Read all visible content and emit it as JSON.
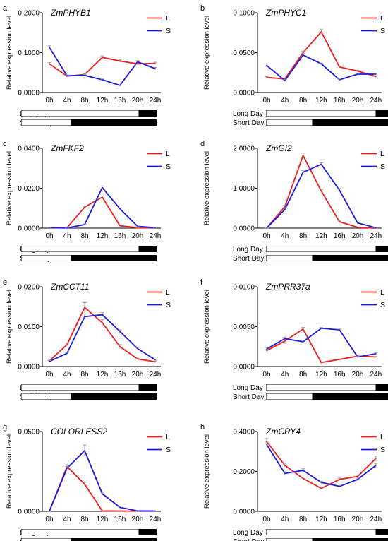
{
  "x_categories": [
    "0h",
    "4h",
    "8h",
    "12h",
    "16h",
    "20h",
    "24h"
  ],
  "day_labels": {
    "long": "Long Day",
    "short": "Short Day"
  },
  "colors": {
    "L": "#ee1c1c",
    "S": "#1a1ae0",
    "error": "#999999"
  },
  "chart_data": [
    {
      "type": "line",
      "letter": "a",
      "title": "ZmPHYB1",
      "ylabel": "Relative expression level",
      "yticks": [
        "0.0000",
        "0.1000",
        "0.2000"
      ],
      "ylim": [
        0,
        0.2
      ],
      "legend_position": "top-right",
      "series": [
        {
          "name": "L",
          "values": [
            0.072,
            0.041,
            0.045,
            0.088,
            0.079,
            0.072,
            0.073
          ],
          "errors": [
            0.003,
            0.002,
            0.002,
            0.004,
            0.003,
            0.003,
            0.003
          ]
        },
        {
          "name": "S",
          "values": [
            0.113,
            0.042,
            0.043,
            0.032,
            0.018,
            0.077,
            0.06
          ],
          "errors": [
            0.004,
            0.002,
            0.002,
            0.002,
            0.001,
            0.003,
            0.003
          ]
        }
      ]
    },
    {
      "type": "line",
      "letter": "b",
      "title": "ZmPHYC1",
      "ylabel": "Relative expression level",
      "yticks": [
        "0.0000",
        "0.0500",
        "0.1000"
      ],
      "ylim": [
        0,
        0.1
      ],
      "legend_position": "top-right",
      "series": [
        {
          "name": "L",
          "values": [
            0.019,
            0.017,
            0.05,
            0.076,
            0.032,
            0.027,
            0.02
          ],
          "errors": [
            0.001,
            0.001,
            0.002,
            0.003,
            0.001,
            0.001,
            0.001
          ]
        },
        {
          "name": "S",
          "values": [
            0.034,
            0.015,
            0.047,
            0.036,
            0.016,
            0.023,
            0.023
          ],
          "errors": [
            0.002,
            0.001,
            0.002,
            0.001,
            0.001,
            0.001,
            0.001
          ]
        }
      ]
    },
    {
      "type": "line",
      "letter": "c",
      "title": "ZmFKF2",
      "ylabel": "Relative expression level",
      "yticks": [
        "0.0000",
        "0.0200",
        "0.0400"
      ],
      "ylim": [
        0,
        0.04
      ],
      "legend_position": "top-right",
      "series": [
        {
          "name": "L",
          "values": [
            0.0003,
            0.0002,
            0.0105,
            0.0155,
            0.0012,
            0.0002,
            0.0001
          ],
          "errors": [
            5e-05,
            5e-05,
            0.0004,
            0.0006,
            0.0002,
            5e-05,
            5e-05
          ]
        },
        {
          "name": "S",
          "values": [
            0.0002,
            0.0001,
            0.0018,
            0.0203,
            0.0097,
            0.0009,
            0.0002
          ],
          "errors": [
            5e-05,
            5e-05,
            0.0002,
            0.0008,
            0.0005,
            0.0001,
            5e-05
          ]
        }
      ]
    },
    {
      "type": "line",
      "letter": "d",
      "title": "ZmGI2",
      "ylabel": "Relative expression level",
      "yticks": [
        "0.0000",
        "1.0000",
        "2.0000"
      ],
      "ylim": [
        0,
        2.0
      ],
      "legend_position": "top-right",
      "series": [
        {
          "name": "L",
          "values": [
            0.0,
            0.54,
            1.82,
            0.93,
            0.16,
            0.02,
            0.0
          ],
          "errors": [
            0.005,
            0.03,
            0.06,
            0.04,
            0.02,
            0.005,
            0.005
          ]
        },
        {
          "name": "S",
          "values": [
            0.0,
            0.47,
            1.4,
            1.6,
            0.95,
            0.13,
            0.01
          ],
          "errors": [
            0.005,
            0.03,
            0.05,
            0.04,
            0.04,
            0.02,
            0.005
          ]
        }
      ]
    },
    {
      "type": "line",
      "letter": "e",
      "title": "ZmCCT11",
      "ylabel": "Relative expression level",
      "yticks": [
        "0.0000",
        "0.0100",
        "0.0200"
      ],
      "ylim": [
        0,
        0.02
      ],
      "legend_position": "top-right",
      "series": [
        {
          "name": "L",
          "values": [
            0.0014,
            0.0055,
            0.0148,
            0.011,
            0.005,
            0.0019,
            0.0012
          ],
          "errors": [
            0.0002,
            0.0003,
            0.0012,
            0.0008,
            0.0005,
            0.0002,
            0.0002
          ]
        },
        {
          "name": "S",
          "values": [
            0.0013,
            0.0033,
            0.0125,
            0.013,
            0.0088,
            0.0045,
            0.0017
          ],
          "errors": [
            0.0002,
            0.0002,
            0.0007,
            0.0005,
            0.0004,
            0.0003,
            0.0002
          ]
        }
      ]
    },
    {
      "type": "line",
      "letter": "f",
      "title": "ZmPRR37a",
      "ylabel": "Relative expression level",
      "yticks": [
        "0.0000",
        "0.0050",
        "0.0100"
      ],
      "ylim": [
        0,
        0.01
      ],
      "legend_position": "top-right",
      "series": [
        {
          "name": "L",
          "values": [
            0.002,
            0.0032,
            0.0047,
            0.0005,
            0.0009,
            0.0013,
            0.0012
          ],
          "errors": [
            0.0001,
            0.0002,
            0.0002,
            5e-05,
            5e-05,
            5e-05,
            5e-05
          ]
        },
        {
          "name": "S",
          "values": [
            0.0022,
            0.0035,
            0.0031,
            0.0048,
            0.0046,
            0.0012,
            0.0016
          ],
          "errors": [
            0.0002,
            0.0002,
            0.0002,
            0.0001,
            0.0001,
            0.0001,
            0.0001
          ]
        }
      ]
    },
    {
      "type": "line",
      "letter": "g",
      "title": "COLORLESS2",
      "ylabel": "Relative expression level",
      "yticks": [
        "0.0000",
        "0.0500"
      ],
      "ylim": [
        0,
        0.05
      ],
      "legend_position": "top-right",
      "series": [
        {
          "name": "L",
          "values": [
            0.0001,
            0.028,
            0.017,
            0.0003,
            0.0002,
            0.0001,
            0.0001
          ],
          "errors": [
            5e-05,
            0.0012,
            0.0012,
            5e-05,
            5e-05,
            5e-05,
            5e-05
          ]
        },
        {
          "name": "S",
          "values": [
            0.0001,
            0.027,
            0.038,
            0.011,
            0.0025,
            0.0003,
            0.0002
          ],
          "errors": [
            5e-05,
            0.001,
            0.0035,
            0.0005,
            0.0002,
            5e-05,
            5e-05
          ]
        }
      ]
    },
    {
      "type": "line",
      "letter": "h",
      "title": "ZmCRY4",
      "ylabel": "Relative expression level",
      "yticks": [
        "0.0000",
        "0.2000",
        "0.4000"
      ],
      "ylim": [
        0,
        0.4
      ],
      "legend_position": "top-right",
      "series": [
        {
          "name": "L",
          "values": [
            0.35,
            0.23,
            0.165,
            0.115,
            0.16,
            0.175,
            0.265
          ],
          "errors": [
            0.015,
            0.008,
            0.006,
            0.006,
            0.006,
            0.007,
            0.012
          ]
        },
        {
          "name": "S",
          "values": [
            0.335,
            0.19,
            0.205,
            0.145,
            0.125,
            0.16,
            0.23
          ],
          "errors": [
            0.012,
            0.007,
            0.008,
            0.006,
            0.005,
            0.007,
            0.01
          ]
        }
      ]
    }
  ]
}
